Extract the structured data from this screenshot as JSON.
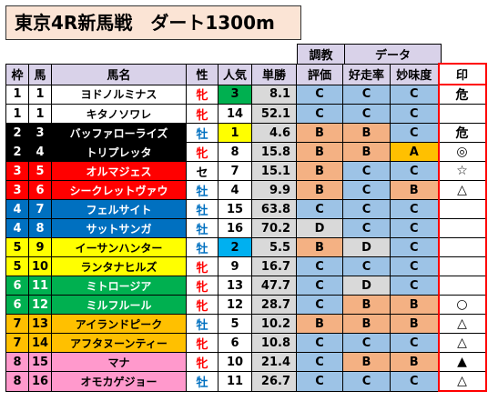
{
  "title": "東京4R新馬戦　ダート1300m",
  "header_group": {
    "training": "調教",
    "data": "データ"
  },
  "columns": [
    "枠",
    "馬",
    "馬名",
    "性",
    "人気",
    "単勝",
    "評価",
    "好走率",
    "妙味度",
    "印"
  ],
  "waku_colors": {
    "1": {
      "bg": "#ffffff",
      "fg": "#000000"
    },
    "2": {
      "bg": "#000000",
      "fg": "#ffffff"
    },
    "3": {
      "bg": "#ff0000",
      "fg": "#ffffff"
    },
    "4": {
      "bg": "#0070c0",
      "fg": "#ffffff"
    },
    "5": {
      "bg": "#ffff00",
      "fg": "#000000"
    },
    "6": {
      "bg": "#00b050",
      "fg": "#ffffff"
    },
    "7": {
      "bg": "#ffc000",
      "fg": "#000000"
    },
    "8": {
      "bg": "#ff99cc",
      "fg": "#000000"
    }
  },
  "grade_colors": {
    "C": "#9dc3e6",
    "B": "#f4b183",
    "D": "#d9d9d9",
    "A": "#ffc000"
  },
  "rows": [
    {
      "waku": "1",
      "uma": "1",
      "name": "ヨドノルミナス",
      "sex": "牝",
      "ninki": "3",
      "odds": "8.1",
      "eval": "C",
      "kouso": "C",
      "myomi": "C",
      "mark": "危"
    },
    {
      "waku": "1",
      "uma": "1",
      "name": "キタノソワレ",
      "sex": "牝",
      "ninki": "14",
      "odds": "52.1",
      "eval": "C",
      "kouso": "C",
      "myomi": "C",
      "mark": ""
    },
    {
      "waku": "2",
      "uma": "3",
      "name": "バッファローライズ",
      "sex": "牡",
      "ninki": "1",
      "odds": "4.6",
      "eval": "B",
      "kouso": "B",
      "myomi": "C",
      "mark": "危"
    },
    {
      "waku": "2",
      "uma": "4",
      "name": "トリプレッタ",
      "sex": "牝",
      "ninki": "8",
      "odds": "15.8",
      "eval": "B",
      "kouso": "B",
      "myomi": "A",
      "mark": "◎"
    },
    {
      "waku": "3",
      "uma": "5",
      "name": "オルマジェス",
      "sex": "セ",
      "ninki": "7",
      "odds": "15.1",
      "eval": "B",
      "kouso": "C",
      "myomi": "C",
      "mark": "☆"
    },
    {
      "waku": "3",
      "uma": "6",
      "name": "シークレットヴァウ",
      "sex": "牡",
      "ninki": "4",
      "odds": "9.9",
      "eval": "B",
      "kouso": "C",
      "myomi": "B",
      "mark": "△"
    },
    {
      "waku": "4",
      "uma": "7",
      "name": "フェルサイト",
      "sex": "牡",
      "ninki": "15",
      "odds": "63.8",
      "eval": "C",
      "kouso": "C",
      "myomi": "C",
      "mark": ""
    },
    {
      "waku": "4",
      "uma": "8",
      "name": "サットサンガ",
      "sex": "牡",
      "ninki": "16",
      "odds": "70.2",
      "eval": "D",
      "kouso": "C",
      "myomi": "C",
      "mark": ""
    },
    {
      "waku": "5",
      "uma": "9",
      "name": "イーサンハンター",
      "sex": "牡",
      "ninki": "2",
      "odds": "5.5",
      "eval": "B",
      "kouso": "D",
      "myomi": "C",
      "mark": ""
    },
    {
      "waku": "5",
      "uma": "10",
      "name": "ランタナヒルズ",
      "sex": "牝",
      "ninki": "9",
      "odds": "16.7",
      "eval": "C",
      "kouso": "C",
      "myomi": "C",
      "mark": ""
    },
    {
      "waku": "6",
      "uma": "11",
      "name": "ミトロージア",
      "sex": "牝",
      "ninki": "13",
      "odds": "47.7",
      "eval": "C",
      "kouso": "D",
      "myomi": "C",
      "mark": ""
    },
    {
      "waku": "6",
      "uma": "12",
      "name": "ミルフルール",
      "sex": "牝",
      "ninki": "12",
      "odds": "28.7",
      "eval": "C",
      "kouso": "B",
      "myomi": "B",
      "mark": "○"
    },
    {
      "waku": "7",
      "uma": "13",
      "name": "アイランドピーク",
      "sex": "牡",
      "ninki": "5",
      "odds": "10.2",
      "eval": "B",
      "kouso": "B",
      "myomi": "B",
      "mark": "△"
    },
    {
      "waku": "7",
      "uma": "14",
      "name": "アフタヌーンティー",
      "sex": "牝",
      "ninki": "6",
      "odds": "10.8",
      "eval": "C",
      "kouso": "C",
      "myomi": "C",
      "mark": "△"
    },
    {
      "waku": "8",
      "uma": "15",
      "name": "マナ",
      "sex": "牝",
      "ninki": "10",
      "odds": "21.4",
      "eval": "C",
      "kouso": "B",
      "myomi": "B",
      "mark": "▲"
    },
    {
      "waku": "8",
      "uma": "16",
      "name": "オモカゲジョー",
      "sex": "牡",
      "ninki": "11",
      "odds": "26.7",
      "eval": "C",
      "kouso": "C",
      "myomi": "C",
      "mark": "△"
    }
  ]
}
